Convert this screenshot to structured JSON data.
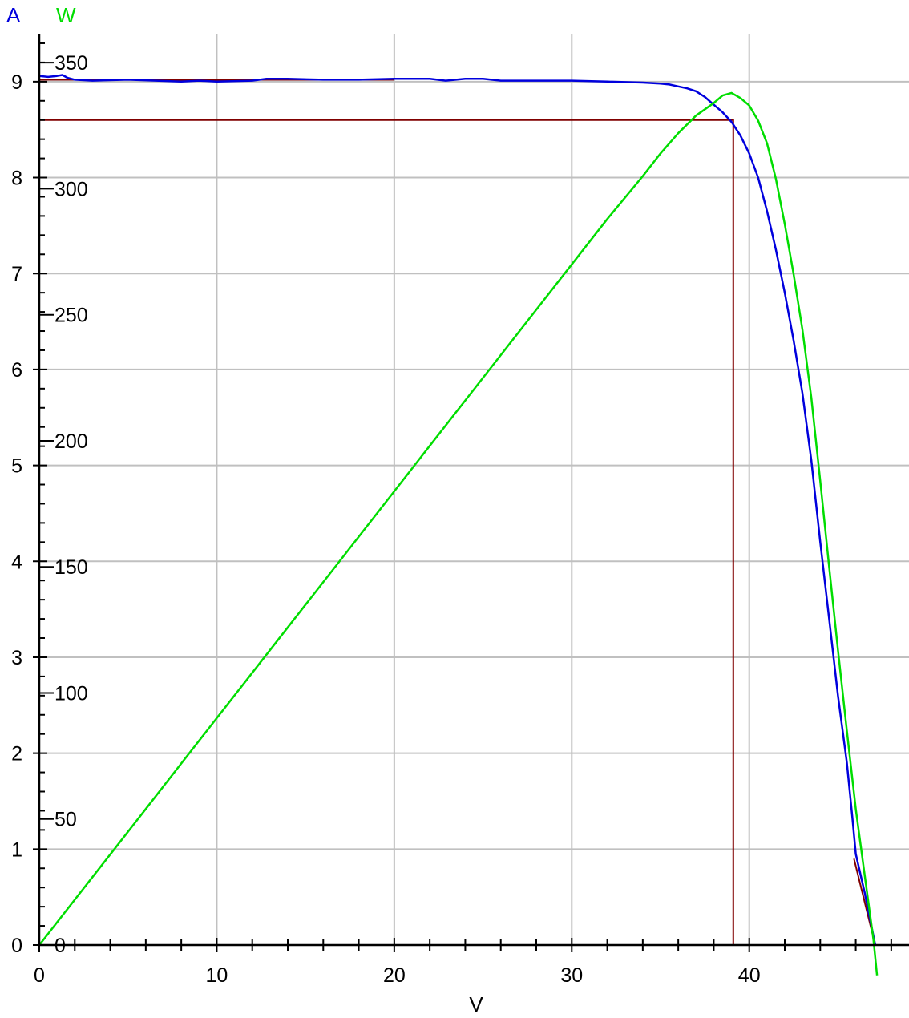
{
  "chart_data": {
    "type": "line",
    "xlabel": "V",
    "ylabel_left": "A",
    "ylabel_right": "W",
    "xlim": [
      0,
      49
    ],
    "ylim_left": [
      0,
      9.5
    ],
    "ylim_right": [
      0,
      361.5
    ],
    "grid": true,
    "x_ticks": [
      0,
      10,
      20,
      30,
      40
    ],
    "y_left_ticks": [
      0,
      1,
      2,
      3,
      4,
      5,
      6,
      7,
      8,
      9
    ],
    "y_right_ticks": [
      0,
      50,
      100,
      150,
      200,
      250,
      300,
      350
    ],
    "colors": {
      "current": "#0000dd",
      "power": "#00dd00",
      "mpp": "#800000",
      "grid": "#c0c0c0",
      "axis": "#000000"
    },
    "series": [
      {
        "axis": "left",
        "x": [
          0,
          0.5,
          1,
          1.3,
          1.6,
          2,
          3,
          5,
          8,
          9,
          10,
          12,
          12.8,
          14,
          16,
          18,
          20,
          22,
          22.9,
          24,
          25,
          26,
          28,
          30,
          32,
          34,
          35,
          35.5,
          36,
          36.5,
          37,
          37.5,
          38,
          38.5,
          39,
          39.5,
          40,
          40.5,
          41,
          41.5,
          42,
          42.5,
          43,
          43.5,
          44,
          44.5,
          45,
          45.5,
          45.8,
          46,
          46.5,
          47.1
        ],
        "y": [
          9.06,
          9.05,
          9.06,
          9.07,
          9.04,
          9.02,
          9.01,
          9.02,
          9.0,
          9.01,
          9.0,
          9.01,
          9.03,
          9.03,
          9.02,
          9.02,
          9.03,
          9.03,
          9.01,
          9.03,
          9.03,
          9.01,
          9.01,
          9.01,
          9.0,
          8.99,
          8.98,
          8.97,
          8.95,
          8.93,
          8.9,
          8.84,
          8.76,
          8.68,
          8.58,
          8.44,
          8.25,
          8.0,
          7.65,
          7.25,
          6.8,
          6.3,
          5.75,
          5.05,
          4.2,
          3.4,
          2.6,
          1.9,
          1.35,
          0.95,
          0.55,
          0.0
        ]
      },
      {
        "axis": "right",
        "x": [
          0,
          2,
          4,
          6,
          8,
          10,
          12,
          14,
          16,
          18,
          20,
          22,
          24,
          26,
          28,
          30,
          32,
          34,
          35,
          36,
          37,
          38,
          38.5,
          39,
          39.5,
          40,
          40.5,
          41,
          41.5,
          42,
          42.5,
          43,
          43.5,
          44,
          44.5,
          45,
          45.5,
          46,
          46.5,
          47,
          47.2
        ],
        "y": [
          0,
          18,
          36,
          54,
          72,
          90,
          108,
          126,
          144,
          162,
          180,
          198,
          216,
          234,
          252,
          270,
          288,
          305,
          314,
          322,
          329,
          334,
          337,
          338,
          336,
          333,
          327,
          318,
          304,
          286,
          266,
          244,
          217,
          184,
          150,
          117,
          85,
          54,
          28,
          2,
          -12
        ]
      }
    ],
    "annotations": {
      "mpp_voltage": 39.1,
      "mpp_current": 8.6,
      "isc": 9.02,
      "voc": 47.1
    }
  }
}
